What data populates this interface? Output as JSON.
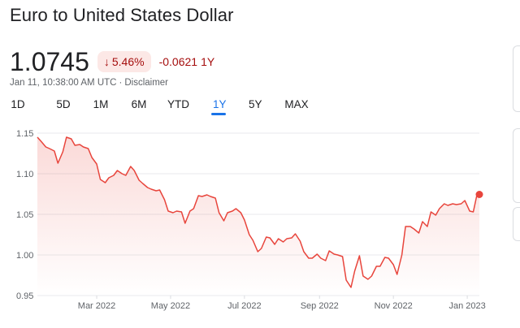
{
  "header": {
    "title": "Euro to United States Dollar",
    "price": "1.0745",
    "percent_change": "5.46%",
    "abs_change": "-0.0621",
    "change_period": "1Y",
    "timestamp": "Jan 11, 10:38:00 AM UTC",
    "separator": "·",
    "disclaimer": "Disclaimer"
  },
  "tabs": [
    {
      "label": "1D"
    },
    {
      "label": "5D"
    },
    {
      "label": "1M"
    },
    {
      "label": "6M"
    },
    {
      "label": "YTD"
    },
    {
      "label": "1Y",
      "active": true
    },
    {
      "label": "5Y"
    },
    {
      "label": "MAX"
    }
  ],
  "colors": {
    "line": "#e8453c",
    "negative": "#a50e0e",
    "negative_bg": "#fce8e6",
    "accent": "#1a73e8"
  },
  "icons": {
    "change_arrow": "arrow-down-icon"
  },
  "chart_data": {
    "type": "area",
    "title": "",
    "xlabel": "",
    "ylabel": "",
    "ylim": [
      0.95,
      1.15
    ],
    "yticks": [
      {
        "value": 1.15,
        "label": "1.15"
      },
      {
        "value": 1.1,
        "label": "1.10"
      },
      {
        "value": 1.05,
        "label": "1.05"
      },
      {
        "value": 1.0,
        "label": "1.00"
      },
      {
        "value": 0.95,
        "label": "0.95"
      }
    ],
    "xlim": [
      "2022-01-11",
      "2023-01-11"
    ],
    "xticks": [
      {
        "date": "2022-03-01",
        "label": "Mar 2022"
      },
      {
        "date": "2022-05-01",
        "label": "May 2022"
      },
      {
        "date": "2022-07-01",
        "label": "Jul 2022"
      },
      {
        "date": "2022-09-01",
        "label": "Sep 2022"
      },
      {
        "date": "2022-11-01",
        "label": "Nov 2022"
      },
      {
        "date": "2023-01-01",
        "label": "Jan 2023"
      }
    ],
    "grid": true,
    "series": [
      {
        "x": [
          "2022-01-11",
          "2022-01-14",
          "2022-01-18",
          "2022-01-21",
          "2022-01-25",
          "2022-01-28",
          "2022-02-01",
          "2022-02-04",
          "2022-02-08",
          "2022-02-11",
          "2022-02-15",
          "2022-02-18",
          "2022-02-22",
          "2022-02-25",
          "2022-03-01",
          "2022-03-04",
          "2022-03-08",
          "2022-03-11",
          "2022-03-15",
          "2022-03-18",
          "2022-03-22",
          "2022-03-25",
          "2022-03-29",
          "2022-04-01",
          "2022-04-05",
          "2022-04-08",
          "2022-04-12",
          "2022-04-15",
          "2022-04-19",
          "2022-04-22",
          "2022-04-26",
          "2022-04-29",
          "2022-05-03",
          "2022-05-06",
          "2022-05-10",
          "2022-05-13",
          "2022-05-17",
          "2022-05-20",
          "2022-05-24",
          "2022-05-27",
          "2022-05-31",
          "2022-06-03",
          "2022-06-07",
          "2022-06-10",
          "2022-06-14",
          "2022-06-17",
          "2022-06-21",
          "2022-06-24",
          "2022-06-28",
          "2022-07-01",
          "2022-07-05",
          "2022-07-08",
          "2022-07-12",
          "2022-07-15",
          "2022-07-19",
          "2022-07-22",
          "2022-07-26",
          "2022-07-29",
          "2022-08-02",
          "2022-08-05",
          "2022-08-09",
          "2022-08-12",
          "2022-08-16",
          "2022-08-19",
          "2022-08-23",
          "2022-08-26",
          "2022-08-30",
          "2022-09-02",
          "2022-09-06",
          "2022-09-09",
          "2022-09-13",
          "2022-09-16",
          "2022-09-20",
          "2022-09-23",
          "2022-09-27",
          "2022-09-30",
          "2022-10-04",
          "2022-10-07",
          "2022-10-11",
          "2022-10-14",
          "2022-10-18",
          "2022-10-21",
          "2022-10-25",
          "2022-10-28",
          "2022-11-01",
          "2022-11-04",
          "2022-11-08",
          "2022-11-11",
          "2022-11-15",
          "2022-11-18",
          "2022-11-22",
          "2022-11-25",
          "2022-11-29",
          "2022-12-02",
          "2022-12-06",
          "2022-12-09",
          "2022-12-13",
          "2022-12-16",
          "2022-12-20",
          "2022-12-23",
          "2022-12-27",
          "2022-12-30",
          "2023-01-03",
          "2023-01-06",
          "2023-01-09",
          "2023-01-11"
        ],
        "values": [
          1.145,
          1.14,
          1.133,
          1.131,
          1.128,
          1.113,
          1.127,
          1.145,
          1.143,
          1.135,
          1.136,
          1.133,
          1.131,
          1.12,
          1.112,
          1.093,
          1.089,
          1.095,
          1.098,
          1.104,
          1.1,
          1.098,
          1.109,
          1.104,
          1.092,
          1.088,
          1.083,
          1.081,
          1.079,
          1.08,
          1.068,
          1.054,
          1.052,
          1.054,
          1.053,
          1.039,
          1.054,
          1.057,
          1.073,
          1.072,
          1.074,
          1.072,
          1.07,
          1.052,
          1.042,
          1.052,
          1.054,
          1.057,
          1.052,
          1.043,
          1.025,
          1.018,
          1.004,
          1.008,
          1.022,
          1.021,
          1.013,
          1.02,
          1.016,
          1.02,
          1.021,
          1.026,
          1.017,
          1.004,
          0.996,
          0.996,
          1.001,
          0.996,
          0.993,
          1.005,
          1.001,
          1.0,
          0.998,
          0.969,
          0.96,
          0.98,
          0.999,
          0.974,
          0.97,
          0.974,
          0.986,
          0.986,
          0.997,
          0.996,
          0.988,
          0.976,
          1.0,
          1.035,
          1.035,
          1.032,
          1.027,
          1.041,
          1.035,
          1.053,
          1.049,
          1.057,
          1.063,
          1.061,
          1.063,
          1.062,
          1.063,
          1.067,
          1.054,
          1.053,
          1.074,
          1.0745
        ]
      }
    ]
  }
}
